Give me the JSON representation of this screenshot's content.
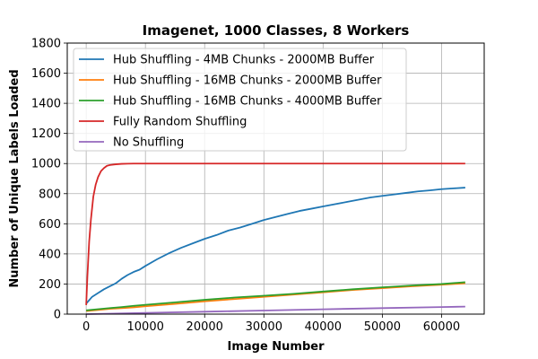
{
  "chart_data": {
    "type": "line",
    "title": "Imagenet, 1000 Classes, 8 Workers",
    "xlabel": "Image Number",
    "ylabel": "Number of Unique Labels Loaded",
    "xlim": [
      -3200,
      67200
    ],
    "ylim": [
      0,
      1800
    ],
    "xticks": [
      0,
      10000,
      20000,
      30000,
      40000,
      50000,
      60000
    ],
    "yticks": [
      0,
      200,
      400,
      600,
      800,
      1000,
      1200,
      1400,
      1600,
      1800
    ],
    "grid": true,
    "legend_position": "top-left",
    "series": [
      {
        "name": "Hub Shuffling - 4MB Chunks - 2000MB Buffer",
        "color": "#1f77b4",
        "x": [
          0,
          1000,
          2000,
          3000,
          4000,
          5000,
          6000,
          7000,
          8000,
          9000,
          10000,
          12000,
          14000,
          16000,
          18000,
          20000,
          22000,
          24000,
          26000,
          28000,
          30000,
          32000,
          34000,
          36000,
          38000,
          40000,
          42000,
          44000,
          46000,
          48000,
          50000,
          52000,
          54000,
          56000,
          58000,
          60000,
          62000,
          64000
        ],
        "y": [
          70,
          115,
          140,
          165,
          185,
          205,
          235,
          260,
          280,
          295,
          320,
          365,
          405,
          440,
          470,
          500,
          525,
          555,
          575,
          600,
          625,
          645,
          665,
          685,
          700,
          715,
          730,
          745,
          760,
          775,
          785,
          795,
          805,
          815,
          822,
          830,
          835,
          840
        ]
      },
      {
        "name": "Hub Shuffling - 16MB Chunks - 2000MB Buffer",
        "color": "#ff7f0e",
        "x": [
          0,
          2000,
          4000,
          6000,
          8000,
          10000,
          15000,
          20000,
          25000,
          30000,
          35000,
          40000,
          45000,
          50000,
          55000,
          60000,
          64000
        ],
        "y": [
          20,
          28,
          35,
          40,
          45,
          52,
          68,
          85,
          100,
          115,
          130,
          145,
          160,
          172,
          185,
          195,
          205
        ]
      },
      {
        "name": "Hub Shuffling - 16MB Chunks - 4000MB Buffer",
        "color": "#2ca02c",
        "x": [
          0,
          2000,
          4000,
          6000,
          8000,
          10000,
          15000,
          20000,
          25000,
          30000,
          35000,
          40000,
          45000,
          50000,
          55000,
          60000,
          64000
        ],
        "y": [
          25,
          33,
          40,
          47,
          55,
          62,
          78,
          95,
          110,
          122,
          135,
          150,
          165,
          178,
          190,
          200,
          212
        ]
      },
      {
        "name": "Fully Random Shuffling",
        "color": "#d62728",
        "x": [
          0,
          200,
          500,
          800,
          1200,
          1600,
          2000,
          2500,
          3000,
          3500,
          4000,
          5000,
          6000,
          7000,
          8000,
          10000,
          20000,
          30000,
          40000,
          50000,
          60000,
          64000
        ],
        "y": [
          60,
          250,
          480,
          630,
          780,
          860,
          910,
          950,
          970,
          985,
          990,
          995,
          998,
          999,
          1000,
          1000,
          1000,
          1000,
          1000,
          1000,
          1000,
          1000
        ]
      },
      {
        "name": "No Shuffling",
        "color": "#9467bd",
        "x": [
          0,
          10000,
          20000,
          30000,
          40000,
          50000,
          60000,
          64000
        ],
        "y": [
          0,
          8,
          16,
          24,
          32,
          40,
          47,
          50
        ]
      }
    ]
  }
}
